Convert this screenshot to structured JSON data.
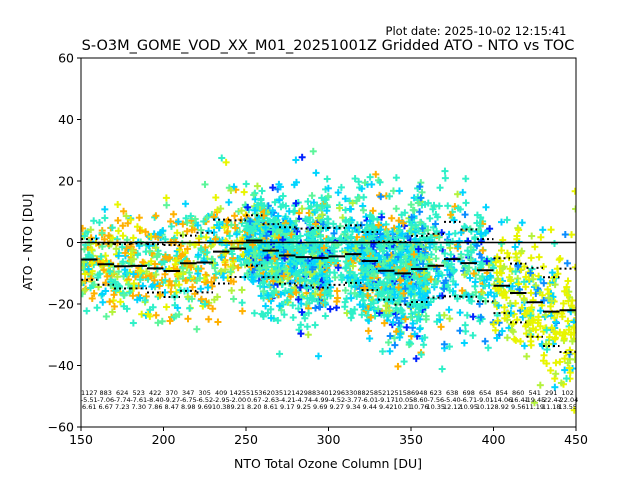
{
  "plot_date": "Plot date: 2025-10-02 12:15:41",
  "chart_data": {
    "type": "scatter",
    "title": "S-O3M_GOME_VOD_XX_M01_20251001Z Gridded ATO - NTO vs TOC",
    "xlabel": "NTO Total Ozone Column [DU]",
    "ylabel": "ATO - NTO [DU]",
    "xlim": [
      150,
      450
    ],
    "ylim": [
      -60,
      60
    ],
    "xticks": [
      "150",
      "200",
      "250",
      "300",
      "350",
      "400",
      "450"
    ],
    "yticks": [
      "−60",
      "−40",
      "−20",
      "0",
      "20",
      "40",
      "60"
    ],
    "xtick_values": [
      150,
      200,
      250,
      300,
      350,
      400,
      450
    ],
    "ytick_values": [
      -60,
      -40,
      -20,
      0,
      20,
      40,
      60
    ],
    "zero_line": 0,
    "bin_width": 10,
    "bins": [
      150,
      160,
      170,
      180,
      190,
      200,
      210,
      220,
      230,
      240,
      250,
      260,
      270,
      280,
      290,
      300,
      310,
      320,
      330,
      340,
      350,
      360,
      370,
      380,
      390,
      400,
      410,
      420,
      430,
      440
    ],
    "counts": [
      "1127",
      "883",
      "624",
      "523",
      "422",
      "370",
      "347",
      "305",
      "409",
      "1425",
      "5153",
      "6203",
      "5121",
      "4298",
      "8340",
      "1296",
      "3308",
      "8258",
      "5212",
      "5158",
      "6948",
      "623",
      "638",
      "698",
      "654",
      "854",
      "860",
      "541",
      "291",
      "102"
    ],
    "means": [
      -5.51,
      -7.06,
      -7.74,
      -7.61,
      -8.4,
      -9.27,
      -6.75,
      -6.52,
      -2.95,
      -2.0,
      0.67,
      -2.63,
      -4.21,
      -4.74,
      -4.99,
      -4.52,
      -3.77,
      -6.01,
      -9.17,
      -10.05,
      -8.6,
      -7.56,
      -5.4,
      -6.71,
      -9.01,
      -14.06,
      -16.41,
      -19.45,
      -22.47,
      -22.04
    ],
    "means_text": [
      "-5.51",
      "-7.06",
      "-7.74",
      "-7.61",
      "-8.40",
      "-9.27",
      "-6.75",
      "-6.52",
      "-2.95",
      "-2.00",
      "0.67",
      "-2.63",
      "-4.21",
      "-4.74",
      "-4.99",
      "-4.52",
      "-3.77",
      "-6.01",
      "-9.17",
      "-10.05",
      "-8.60",
      "-7.56",
      "-5.40",
      "-6.71",
      "-9.01",
      "-14.06",
      "-16.41",
      "-19.45",
      "-22.47",
      "-22.04"
    ],
    "stds": [
      6.61,
      6.67,
      7.23,
      7.3,
      7.86,
      8.47,
      8.98,
      9.69,
      10.38,
      9.21,
      8.2,
      8.61,
      9.17,
      9.25,
      9.69,
      9.27,
      9.34,
      9.44,
      9.42,
      10.21,
      10.76,
      10.35,
      12.12,
      10.95,
      10.12,
      8.92,
      9.56,
      11.19,
      11.18,
      13.55
    ],
    "stds_text": [
      "6.61",
      "6.67",
      "7.23",
      "7.30",
      "7.86",
      "8.47",
      "8.98",
      "9.69",
      "10.38",
      "9.21",
      "8.20",
      "8.61",
      "9.17",
      "9.25",
      "9.69",
      "9.27",
      "9.34",
      "9.44",
      "9.42",
      "10.21",
      "10.76",
      "10.35",
      "12.12",
      "10.95",
      "10.12",
      "8.92",
      "9.56",
      "11.19",
      "11.18",
      "13.55"
    ],
    "colors": {
      "palette": [
        "#0022ff",
        "#0a8cff",
        "#00d4ff",
        "#2ef0c8",
        "#5cf59a",
        "#b4f23c",
        "#e8f500",
        "#ffd400",
        "#ffb000"
      ],
      "mean_line": "#000000",
      "std_line": "#000000"
    }
  }
}
